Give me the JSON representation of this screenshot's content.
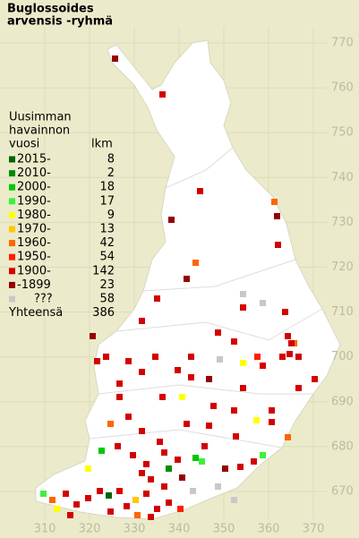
{
  "title": [
    "Buglossoides",
    "arvensis -ryhmä"
  ],
  "legend": {
    "header": [
      "Uusimman",
      "havainnon",
      "vuosi"
    ],
    "count_header": "lkm",
    "rows": [
      {
        "label": "2015-",
        "count": 8,
        "color": "#006400"
      },
      {
        "label": "2010-",
        "count": 2,
        "color": "#008c00"
      },
      {
        "label": "2000-",
        "count": 18,
        "color": "#00c800"
      },
      {
        "label": "1990-",
        "count": 17,
        "color": "#3cf03c"
      },
      {
        "label": "1980-",
        "count": 9,
        "color": "#ffff00"
      },
      {
        "label": "1970-",
        "count": 13,
        "color": "#ffc800"
      },
      {
        "label": "1960-",
        "count": 42,
        "color": "#ff6400"
      },
      {
        "label": "1950-",
        "count": 54,
        "color": "#ff1e00"
      },
      {
        "label": "1900-",
        "count": 142,
        "color": "#d20000"
      },
      {
        "label": "-1899",
        "count": 23,
        "color": "#960000"
      },
      {
        "label": "???",
        "count": 58,
        "color": "#c8c8c8"
      }
    ],
    "total_label": "Yhteensä",
    "total": 386
  },
  "grid": {
    "y_labels": [
      770,
      760,
      750,
      740,
      730,
      720,
      710,
      700,
      690,
      680,
      670
    ],
    "x_labels": [
      310,
      320,
      330,
      340,
      350,
      360,
      370
    ]
  }
}
